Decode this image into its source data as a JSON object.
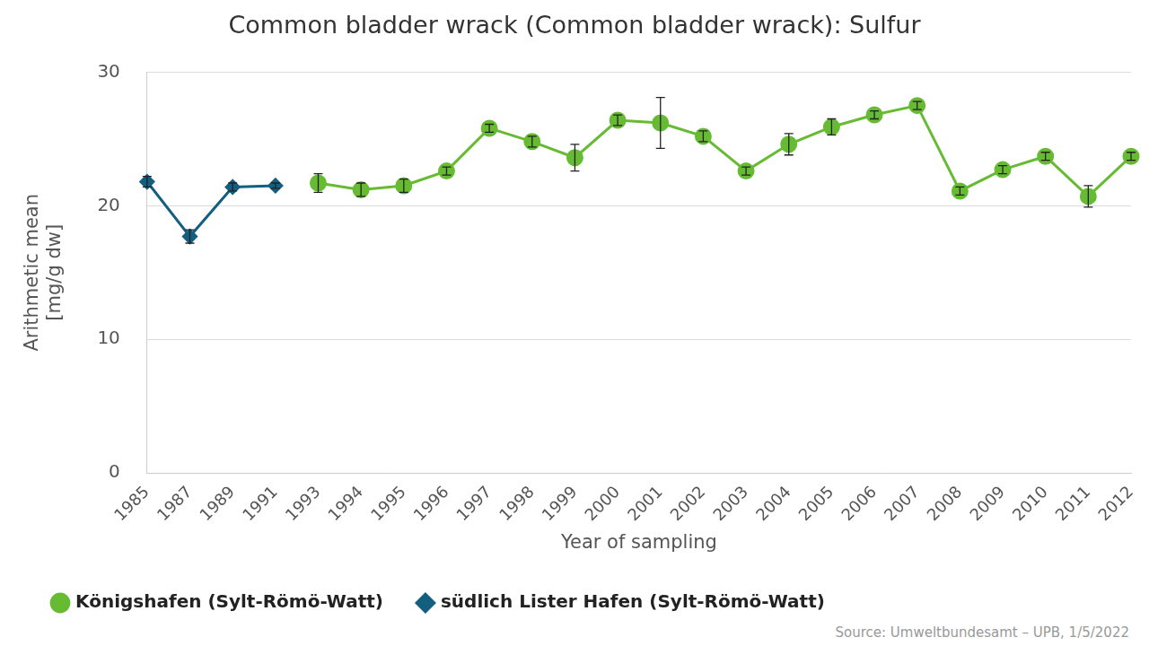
{
  "chart_data": {
    "type": "line",
    "title": "Common bladder wrack (Common bladder wrack): Sulfur",
    "x_label": "Year of sampling",
    "y_label": [
      "Arithmetic mean",
      "[mg/g dw]"
    ],
    "source": "Source: Umweltbundesamt – UPB, 1/5/2022",
    "categories": [
      "1985",
      "1987",
      "1989",
      "1991",
      "1993",
      "1994",
      "1995",
      "1996",
      "1997",
      "1998",
      "1999",
      "2000",
      "2001",
      "2002",
      "2003",
      "2004",
      "2005",
      "2006",
      "2007",
      "2008",
      "2009",
      "2010",
      "2011",
      "2012"
    ],
    "series": [
      {
        "name": "Königshafen (Sylt-Römö-Watt)",
        "color": "#66bb33",
        "marker": "circle",
        "values": [
          null,
          null,
          null,
          null,
          21.7,
          21.2,
          21.5,
          22.6,
          25.8,
          24.8,
          23.6,
          26.4,
          26.2,
          25.2,
          22.6,
          24.6,
          25.9,
          26.8,
          27.5,
          21.1,
          22.7,
          23.7,
          20.7,
          23.7
        ],
        "errors": [
          null,
          null,
          null,
          null,
          0.7,
          0.5,
          0.5,
          0.3,
          0.3,
          0.4,
          1.0,
          0.4,
          1.9,
          0.4,
          0.3,
          0.8,
          0.6,
          0.3,
          0.3,
          0.3,
          0.3,
          0.3,
          0.8,
          0.3
        ]
      },
      {
        "name": "südlich Lister Hafen (Sylt-Römö-Watt)",
        "color": "#135f80",
        "marker": "diamond",
        "values": [
          21.8,
          17.7,
          21.4,
          21.5,
          null,
          null,
          null,
          null,
          null,
          null,
          null,
          null,
          null,
          null,
          null,
          null,
          null,
          null,
          null,
          null,
          null,
          null,
          null,
          null
        ],
        "errors": [
          0.4,
          0.5,
          0.3,
          0.2,
          null,
          null,
          null,
          null,
          null,
          null,
          null,
          null,
          null,
          null,
          null,
          null,
          null,
          null,
          null,
          null,
          null,
          null,
          null,
          null
        ]
      }
    ],
    "ylim": [
      0,
      30
    ],
    "yticks": [
      0,
      10,
      20,
      30
    ],
    "grid": true,
    "legend": "bottom-left"
  }
}
